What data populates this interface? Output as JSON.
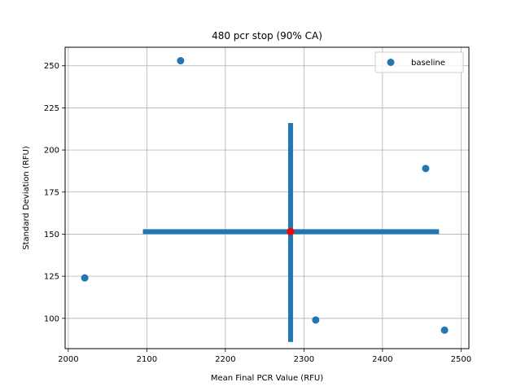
{
  "chart_data": {
    "type": "scatter",
    "title": "480 pcr stop (90% CA)",
    "xlabel": "Mean Final PCR Value (RFU)",
    "ylabel": "Standard Deviation (RFU)",
    "xlim": [
      1996,
      2510
    ],
    "ylim": [
      82,
      261
    ],
    "xticks": [
      2000,
      2100,
      2200,
      2300,
      2400,
      2500
    ],
    "yticks": [
      100,
      125,
      150,
      175,
      200,
      225,
      250
    ],
    "grid": true,
    "legend_position": "top-right",
    "series": [
      {
        "name": "baseline",
        "color": "#1f77b4",
        "points": [
          {
            "x": 2021,
            "y": 124
          },
          {
            "x": 2143,
            "y": 253
          },
          {
            "x": 2315,
            "y": 99
          },
          {
            "x": 2455,
            "y": 189
          },
          {
            "x": 2479,
            "y": 93
          }
        ]
      }
    ],
    "mean_point": {
      "x": 2283,
      "y": 151.5,
      "color": "#ff0000"
    },
    "error_bars": {
      "color": "#1f77b4",
      "horizontal": {
        "y": 151.5,
        "x_from": 2095,
        "x_to": 2472
      },
      "vertical": {
        "x": 2283,
        "y_from": 86,
        "y_to": 216
      }
    }
  }
}
